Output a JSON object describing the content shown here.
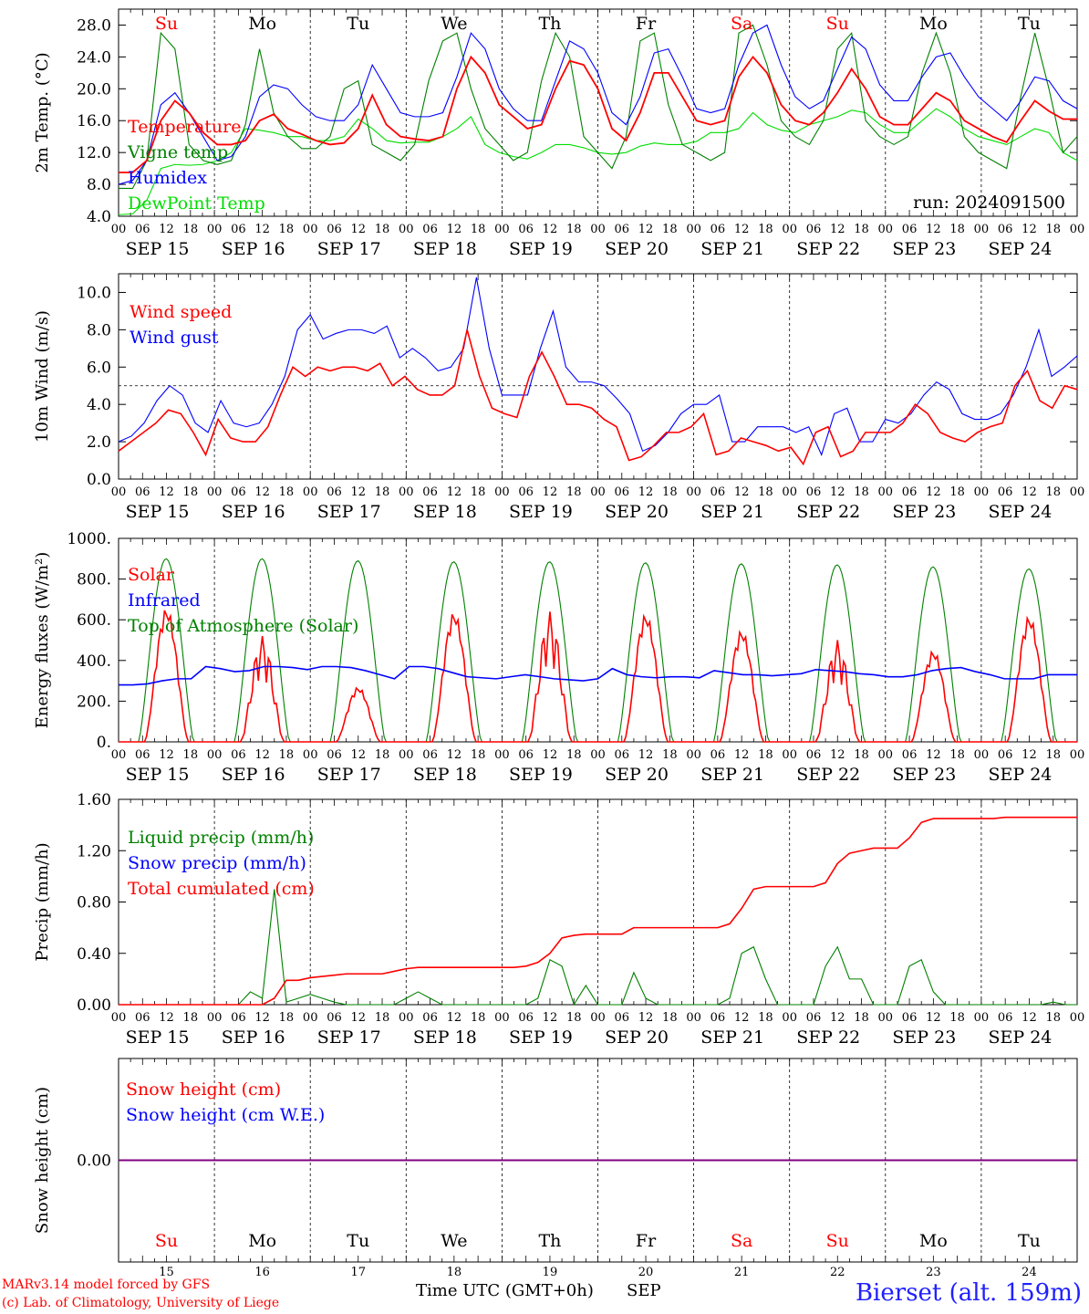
{
  "days": [
    "SEP 15",
    "SEP 16",
    "SEP 17",
    "SEP 18",
    "SEP 19",
    "SEP 20",
    "SEP 21",
    "SEP 22",
    "SEP 23",
    "SEP 24"
  ],
  "hour_labels": [
    "00",
    "06",
    "12",
    "18"
  ],
  "final_hour_label": "00",
  "weekdays": [
    "Su",
    "Mo",
    "Tu",
    "We",
    "Th",
    "Fr",
    "Sa",
    "Su",
    "Mo",
    "Tu"
  ],
  "weekday_colors": [
    "#ff0000",
    "#000000",
    "#000000",
    "#000000",
    "#000000",
    "#000000",
    "#ff0000",
    "#ff0000",
    "#000000",
    "#000000"
  ],
  "day_numbers": [
    "15",
    "16",
    "17",
    "18",
    "19",
    "20",
    "21",
    "22",
    "23",
    "24"
  ],
  "colors": {
    "red": "#ff0000",
    "green": "#008000",
    "blue": "#0000ff",
    "lightgreen": "#00dd00",
    "purple": "#800080"
  },
  "footer": {
    "model": "MARv3.14 model forced by GFS",
    "lab": "(c) Lab. of Climatology, University of Liege",
    "time_axis": "Time UTC (GMT+0h)",
    "month": "SEP",
    "station": "Bierset (alt. 159m)"
  },
  "chart_data": [
    {
      "type": "line",
      "ylabel": "2m Temp. (°C)",
      "ylim": [
        4,
        30
      ],
      "yticks": [
        "4.0",
        "8.0",
        "12.0",
        "16.0",
        "20.0",
        "24.0",
        "28.0"
      ],
      "annotation": "run: 2024091500",
      "legend": [
        {
          "name": "Temperature",
          "color": "#ff0000"
        },
        {
          "name": "Vigne temp",
          "color": "#008000"
        },
        {
          "name": "Humidex",
          "color": "#0000ff"
        },
        {
          "name": "DewPoint Temp",
          "color": "#00dd00"
        }
      ],
      "x_hours": [
        0,
        3,
        6,
        9,
        12,
        15,
        18,
        21,
        24,
        27,
        30,
        33,
        36,
        39,
        42,
        45,
        48,
        51,
        54,
        57,
        60,
        63,
        66,
        69,
        72,
        75,
        78,
        81,
        84,
        87,
        90,
        93,
        96,
        99,
        102,
        105,
        108,
        111,
        114,
        117,
        120,
        123,
        126,
        129,
        132,
        135,
        138,
        141,
        144,
        147,
        150,
        153,
        156,
        159,
        162,
        165,
        168,
        171,
        174,
        177,
        180,
        183,
        186,
        189,
        192,
        195,
        198,
        201,
        204,
        207,
        210,
        213,
        216,
        219,
        222,
        225,
        228,
        231,
        234,
        237,
        240
      ],
      "series": [
        {
          "name": "Temperature",
          "color": "#ff0000",
          "values": [
            9.5,
            9.5,
            11,
            16,
            18.5,
            17,
            14.5,
            13,
            13,
            13.5,
            16,
            16.8,
            15,
            14.3,
            13.5,
            13,
            13.2,
            15,
            19.2,
            15.5,
            14,
            13.7,
            13.5,
            14,
            20,
            24,
            22,
            18,
            16.5,
            15,
            15.5,
            20,
            23.5,
            23,
            20,
            15,
            13.5,
            17,
            22,
            22,
            19,
            16,
            15.5,
            16,
            21.5,
            24,
            22,
            18,
            16,
            15.5,
            17,
            19.5,
            22.5,
            20,
            16.5,
            15.5,
            15.5,
            17.5,
            19.5,
            18.5,
            16,
            15,
            14,
            13.3,
            16,
            18.5,
            17.2,
            16.2,
            16.2
          ]
        },
        {
          "name": "Vigne temp",
          "color": "#008000",
          "values": [
            7.5,
            7.5,
            11,
            27,
            25,
            13,
            11,
            10.5,
            11,
            15.5,
            25,
            17,
            14,
            12.5,
            12.5,
            14,
            20,
            21,
            13,
            12,
            11,
            13,
            21,
            26,
            27,
            20,
            15,
            13,
            11,
            12,
            21,
            27,
            24,
            14,
            12,
            10,
            14,
            26,
            27,
            18,
            13,
            12,
            11,
            12,
            27,
            28,
            23,
            16,
            14,
            13,
            16,
            25,
            27,
            16,
            14,
            13,
            14,
            22,
            27,
            22,
            14,
            12,
            11,
            10,
            19,
            27,
            20,
            12,
            14
          ]
        },
        {
          "name": "Humidex",
          "color": "#0000ff",
          "values": [
            8,
            8.5,
            11,
            18,
            19.5,
            17,
            14,
            11,
            11.5,
            14,
            19,
            20.5,
            20,
            18,
            16.5,
            16,
            16,
            18,
            23,
            20,
            17,
            16.5,
            16.5,
            17,
            21.5,
            27,
            25,
            20,
            17.5,
            16,
            16,
            21,
            26,
            25,
            22,
            17,
            15.5,
            19,
            24.5,
            25,
            21.5,
            17.5,
            17,
            17.5,
            23,
            27,
            28,
            23,
            19,
            17.5,
            18.5,
            22.5,
            26.5,
            25,
            20.5,
            18.5,
            18.5,
            21.5,
            24,
            24.5,
            21.5,
            19,
            17.5,
            16,
            18.5,
            21.5,
            21,
            18.5,
            17.5
          ]
        },
        {
          "name": "DewPoint Temp",
          "color": "#00dd00",
          "values": [
            4.2,
            4.3,
            6,
            10,
            10.5,
            10.4,
            10.5,
            11,
            12,
            15,
            14.8,
            14.5,
            14,
            14,
            13.5,
            13.5,
            14,
            16.2,
            15,
            13.5,
            13.2,
            13.3,
            13.3,
            14,
            15,
            16.5,
            13,
            12,
            11.5,
            11.2,
            12,
            13,
            13,
            12.6,
            12,
            11.8,
            12,
            12.8,
            13.2,
            13,
            13,
            13.4,
            14.5,
            14.5,
            15,
            17,
            15.5,
            14.8,
            14.5,
            15.5,
            16,
            16.5,
            17.3,
            17,
            15.5,
            14.5,
            14.5,
            16,
            17.5,
            16.5,
            15,
            14,
            13.5,
            13,
            14,
            15,
            14.5,
            12,
            11
          ]
        }
      ]
    },
    {
      "type": "line",
      "ylabel": "10m Wind (m/s)",
      "ylim": [
        0,
        11
      ],
      "yticks": [
        "0.0",
        "2.0",
        "4.0",
        "6.0",
        "8.0",
        "10.0"
      ],
      "reference_line": 5,
      "legend": [
        {
          "name": "Wind speed",
          "color": "#ff0000"
        },
        {
          "name": "Wind gust",
          "color": "#0000ff"
        }
      ],
      "series": [
        {
          "name": "Wind speed",
          "color": "#ff0000",
          "values": [
            1.5,
            2,
            2.5,
            3,
            3.7,
            3.5,
            2.5,
            1.3,
            3.2,
            2.2,
            2,
            2,
            2.8,
            4.5,
            6,
            5.5,
            6,
            5.8,
            6,
            6,
            5.8,
            6.2,
            5,
            5.5,
            4.8,
            4.5,
            4.5,
            5,
            8,
            5.5,
            3.8,
            3.5,
            3.3,
            5.5,
            6.8,
            5.5,
            4,
            4,
            3.8,
            3.2,
            2.8,
            1,
            1.2,
            1.8,
            2.5,
            2.5,
            2.8,
            3.5,
            1.3,
            1.5,
            2.2,
            2,
            1.8,
            1.5,
            1.7,
            0.8,
            2.5,
            2.8,
            1.2,
            1.5,
            2.5,
            2.5,
            2.5,
            3,
            4,
            3.5,
            2.5,
            2.2,
            2,
            2.5,
            2.8,
            3,
            5,
            5.8,
            4.2,
            3.8,
            5,
            4.8
          ]
        },
        {
          "name": "Wind gust",
          "color": "#0000ff",
          "values": [
            2,
            2.3,
            3,
            4.2,
            5,
            4.5,
            3,
            2.5,
            4.2,
            3,
            2.8,
            3,
            4,
            5.5,
            8,
            8.8,
            7.5,
            7.8,
            8,
            8,
            7.8,
            8.2,
            6.5,
            7,
            6.5,
            5.8,
            6,
            7,
            10.8,
            7,
            4.5,
            4.5,
            4.5,
            7,
            9,
            6,
            5.2,
            5.2,
            5,
            4.3,
            3.5,
            1.5,
            1.8,
            2.5,
            3.5,
            4,
            4,
            4.5,
            2,
            2,
            2.8,
            2.8,
            2.8,
            2.5,
            2.8,
            1.3,
            3.5,
            3.8,
            2,
            2,
            3.2,
            3,
            3.5,
            4.5,
            5.2,
            4.8,
            3.5,
            3.2,
            3.2,
            3.5,
            4.5,
            6,
            8,
            5.5,
            6,
            6.6
          ]
        }
      ]
    },
    {
      "type": "line",
      "ylabel": "Energy fluxes (W/m²)",
      "ylim": [
        0,
        1000
      ],
      "yticks": [
        "0.",
        "200.",
        "400.",
        "600.",
        "800.",
        "1000."
      ],
      "legend": [
        {
          "name": "Solar",
          "color": "#ff0000"
        },
        {
          "name": "Infrared",
          "color": "#0000ff"
        },
        {
          "name": "Top of Atmosphere (Solar)",
          "color": "#008000"
        }
      ],
      "toa_peaks": [
        900,
        900,
        890,
        885,
        885,
        880,
        875,
        870,
        860,
        850
      ],
      "solar_peaks": [
        660,
        520,
        270,
        640,
        640,
        630,
        550,
        500,
        450,
        620
      ],
      "infrared": [
        280,
        280,
        285,
        300,
        310,
        310,
        370,
        360,
        345,
        350,
        370,
        370,
        365,
        355,
        370,
        370,
        365,
        350,
        330,
        310,
        370,
        370,
        360,
        340,
        320,
        315,
        310,
        320,
        330,
        320,
        310,
        305,
        300,
        310,
        360,
        330,
        320,
        315,
        320,
        320,
        315,
        350,
        340,
        330,
        330,
        325,
        330,
        335,
        355,
        350,
        345,
        335,
        330,
        320,
        320,
        330,
        350,
        360,
        365,
        345,
        330,
        310,
        310,
        310,
        330,
        330,
        330
      ]
    },
    {
      "type": "line",
      "ylabel": "Precip (mm/h)",
      "ylim": [
        0,
        1.6
      ],
      "yticks": [
        "0.00",
        "0.40",
        "0.80",
        "1.20",
        "1.60"
      ],
      "legend": [
        {
          "name": "Liquid precip (mm/h)",
          "color": "#008000"
        },
        {
          "name": "Snow precip (mm/h)",
          "color": "#0000ff"
        },
        {
          "name": "Total cumulated (cm)",
          "color": "#ff0000"
        }
      ],
      "series": [
        {
          "name": "Liquid precip (mm/h)",
          "color": "#008000",
          "values": [
            0,
            0,
            0,
            0,
            0,
            0,
            0,
            0,
            0,
            0,
            0,
            0.1,
            0.05,
            0.9,
            0.02,
            0.05,
            0.08,
            0.05,
            0.02,
            0,
            0,
            0,
            0,
            0,
            0.05,
            0.1,
            0.05,
            0,
            0,
            0,
            0,
            0,
            0,
            0,
            0,
            0.05,
            0.35,
            0.3,
            0,
            0.15,
            0,
            0,
            0,
            0.25,
            0.05,
            0,
            0,
            0,
            0,
            0,
            0,
            0.05,
            0.4,
            0.45,
            0.2,
            0,
            0,
            0,
            0,
            0.3,
            0.45,
            0.2,
            0.2,
            0,
            0,
            0,
            0.3,
            0.35,
            0.1,
            0,
            0,
            0,
            0,
            0,
            0,
            0,
            0,
            0,
            0.02,
            0,
            0
          ]
        },
        {
          "name": "Total cumulated (cm)",
          "color": "#ff0000",
          "values": [
            0,
            0,
            0,
            0,
            0,
            0,
            0,
            0,
            0,
            0,
            0,
            0,
            0,
            0.05,
            0.19,
            0.19,
            0.21,
            0.22,
            0.23,
            0.24,
            0.24,
            0.24,
            0.24,
            0.26,
            0.28,
            0.29,
            0.29,
            0.29,
            0.29,
            0.29,
            0.29,
            0.29,
            0.29,
            0.29,
            0.3,
            0.33,
            0.4,
            0.52,
            0.54,
            0.55,
            0.55,
            0.55,
            0.55,
            0.6,
            0.6,
            0.6,
            0.6,
            0.6,
            0.6,
            0.6,
            0.6,
            0.63,
            0.75,
            0.9,
            0.92,
            0.92,
            0.92,
            0.92,
            0.92,
            0.95,
            1.1,
            1.18,
            1.2,
            1.22,
            1.22,
            1.22,
            1.3,
            1.42,
            1.45,
            1.45,
            1.45,
            1.45,
            1.45,
            1.45,
            1.46,
            1.46,
            1.46,
            1.46,
            1.46,
            1.46,
            1.46
          ]
        }
      ]
    },
    {
      "type": "line",
      "ylabel": "Snow height (cm)",
      "ylim": [
        -1,
        1
      ],
      "yticks": [
        "0.00"
      ],
      "legend": [
        {
          "name": "Snow height (cm)",
          "color": "#ff0000"
        },
        {
          "name": "Snow height (cm W.E.)",
          "color": "#0000ff"
        }
      ],
      "series": [
        {
          "name": "Snow height (cm)",
          "color": "#ff0000",
          "values": [
            0,
            0
          ]
        },
        {
          "name": "Snow height (cm W.E.)",
          "color": "#0000ff",
          "values": [
            0,
            0
          ]
        }
      ]
    }
  ]
}
